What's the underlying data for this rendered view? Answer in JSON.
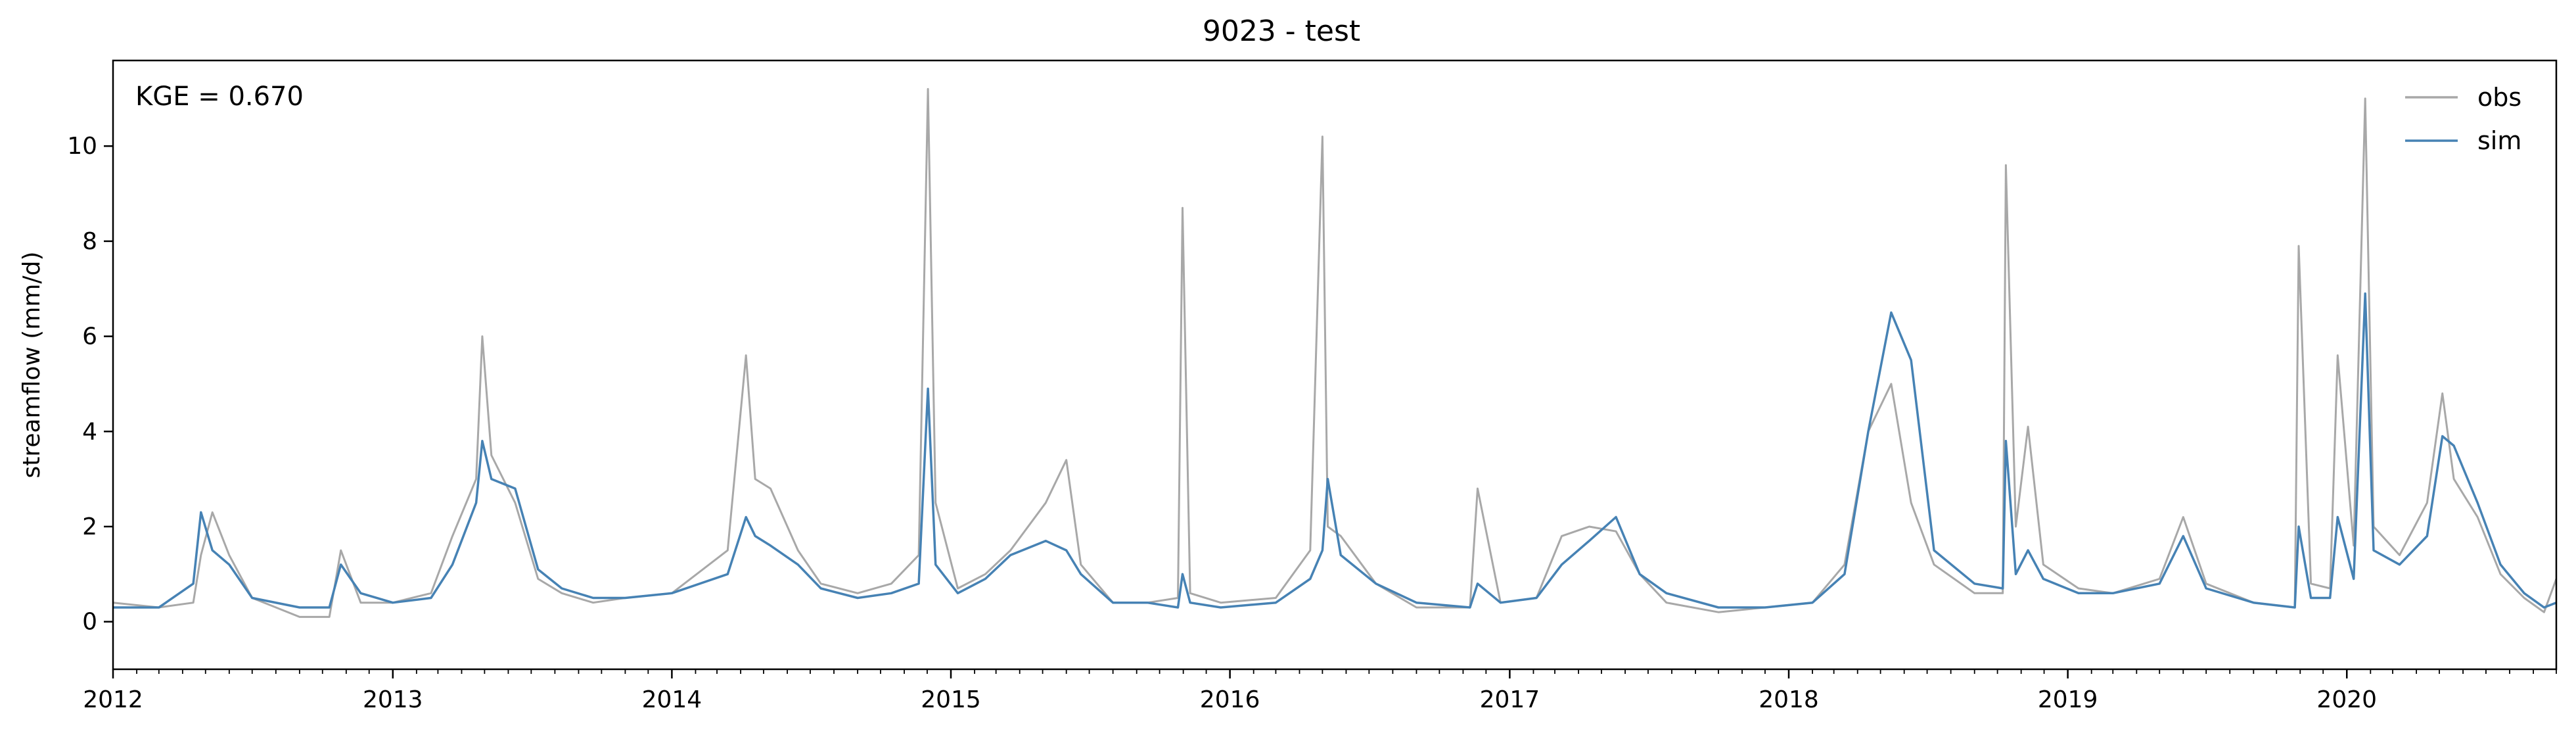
{
  "chart_data": {
    "type": "line",
    "title": "9023 - test",
    "xlabel": "",
    "ylabel": "streamflow (mm/d)",
    "annotation": "KGE = 0.670",
    "xlim": [
      "2012-01-01",
      "2020-10-01"
    ],
    "ylim": [
      -1.0,
      11.8
    ],
    "x_ticks": [
      "2012",
      "2013",
      "2014",
      "2015",
      "2016",
      "2017",
      "2018",
      "2019",
      "2020"
    ],
    "y_ticks": [
      0,
      2,
      4,
      6,
      8,
      10
    ],
    "grid": false,
    "legend_position": "top-right",
    "series": [
      {
        "name": "obs",
        "color": "#a8a8a8",
        "x": [
          "2012-01-01",
          "2012-03-01",
          "2012-04-15",
          "2012-04-25",
          "2012-05-10",
          "2012-06-01",
          "2012-07-01",
          "2012-09-01",
          "2012-10-10",
          "2012-10-25",
          "2012-11-20",
          "2013-01-01",
          "2013-02-20",
          "2013-03-20",
          "2013-04-20",
          "2013-04-28",
          "2013-05-10",
          "2013-06-10",
          "2013-07-10",
          "2013-08-10",
          "2013-09-20",
          "2013-11-01",
          "2014-01-01",
          "2014-03-15",
          "2014-04-08",
          "2014-04-20",
          "2014-05-10",
          "2014-06-15",
          "2014-07-15",
          "2014-09-01",
          "2014-10-15",
          "2014-11-20",
          "2014-12-02",
          "2014-12-12",
          "2015-01-10",
          "2015-02-15",
          "2015-03-20",
          "2015-05-05",
          "2015-06-01",
          "2015-06-20",
          "2015-08-01",
          "2015-09-15",
          "2015-10-25",
          "2015-10-31",
          "2015-11-10",
          "2015-12-20",
          "2016-03-01",
          "2016-04-15",
          "2016-05-01",
          "2016-05-08",
          "2016-05-25",
          "2016-07-10",
          "2016-09-01",
          "2016-11-10",
          "2016-11-20",
          "2016-12-20",
          "2017-02-05",
          "2017-03-10",
          "2017-04-15",
          "2017-05-20",
          "2017-06-20",
          "2017-07-25",
          "2017-10-01",
          "2017-12-01",
          "2018-02-01",
          "2018-03-15",
          "2018-04-15",
          "2018-05-15",
          "2018-06-10",
          "2018-07-10",
          "2018-09-01",
          "2018-10-08",
          "2018-10-12",
          "2018-10-25",
          "2018-11-10",
          "2018-11-30",
          "2019-01-15",
          "2019-03-01",
          "2019-05-01",
          "2019-06-01",
          "2019-07-01",
          "2019-09-01",
          "2019-10-25",
          "2019-10-30",
          "2019-11-15",
          "2019-12-10",
          "2019-12-20",
          "2020-01-10",
          "2020-01-25",
          "2020-02-05",
          "2020-03-10",
          "2020-04-15",
          "2020-05-05",
          "2020-05-20",
          "2020-06-20",
          "2020-07-20",
          "2020-08-20",
          "2020-09-15",
          "2020-10-01"
        ],
        "y": [
          0.4,
          0.3,
          0.4,
          1.4,
          2.3,
          1.4,
          0.5,
          0.1,
          0.1,
          1.5,
          0.4,
          0.4,
          0.6,
          1.8,
          3.0,
          6.0,
          3.5,
          2.5,
          0.9,
          0.6,
          0.4,
          0.5,
          0.6,
          1.5,
          5.6,
          3.0,
          2.8,
          1.5,
          0.8,
          0.6,
          0.8,
          1.4,
          11.2,
          2.5,
          0.7,
          1.0,
          1.5,
          2.5,
          3.4,
          1.2,
          0.4,
          0.4,
          0.5,
          8.7,
          0.6,
          0.4,
          0.5,
          1.5,
          10.2,
          2.0,
          1.8,
          0.8,
          0.3,
          0.3,
          2.8,
          0.4,
          0.5,
          1.8,
          2.0,
          1.9,
          1.0,
          0.4,
          0.2,
          0.3,
          0.4,
          1.2,
          4.0,
          5.0,
          2.5,
          1.2,
          0.6,
          0.6,
          9.6,
          2.0,
          4.1,
          1.2,
          0.7,
          0.6,
          0.9,
          2.2,
          0.8,
          0.4,
          0.3,
          7.9,
          0.8,
          0.7,
          5.6,
          1.6,
          11.0,
          2.0,
          1.4,
          2.5,
          4.8,
          3.0,
          2.2,
          1.0,
          0.5,
          0.2,
          0.9
        ]
      },
      {
        "name": "sim",
        "color": "#4682b4",
        "x": [
          "2012-01-01",
          "2012-03-01",
          "2012-04-15",
          "2012-04-25",
          "2012-05-10",
          "2012-06-01",
          "2012-07-01",
          "2012-09-01",
          "2012-10-10",
          "2012-10-25",
          "2012-11-20",
          "2013-01-01",
          "2013-02-20",
          "2013-03-20",
          "2013-04-20",
          "2013-04-28",
          "2013-05-10",
          "2013-06-10",
          "2013-07-10",
          "2013-08-10",
          "2013-09-20",
          "2013-11-01",
          "2014-01-01",
          "2014-03-15",
          "2014-04-08",
          "2014-04-20",
          "2014-05-10",
          "2014-06-15",
          "2014-07-15",
          "2014-09-01",
          "2014-10-15",
          "2014-11-20",
          "2014-12-02",
          "2014-12-12",
          "2015-01-10",
          "2015-02-15",
          "2015-03-20",
          "2015-05-05",
          "2015-06-01",
          "2015-06-20",
          "2015-08-01",
          "2015-09-15",
          "2015-10-25",
          "2015-10-31",
          "2015-11-10",
          "2015-12-20",
          "2016-03-01",
          "2016-04-15",
          "2016-05-01",
          "2016-05-08",
          "2016-05-25",
          "2016-07-10",
          "2016-09-01",
          "2016-11-10",
          "2016-11-20",
          "2016-12-20",
          "2017-02-05",
          "2017-03-10",
          "2017-04-15",
          "2017-05-20",
          "2017-06-20",
          "2017-07-25",
          "2017-10-01",
          "2017-12-01",
          "2018-02-01",
          "2018-03-15",
          "2018-04-15",
          "2018-05-15",
          "2018-06-10",
          "2018-07-10",
          "2018-09-01",
          "2018-10-08",
          "2018-10-12",
          "2018-10-25",
          "2018-11-10",
          "2018-11-30",
          "2019-01-15",
          "2019-03-01",
          "2019-05-01",
          "2019-06-01",
          "2019-07-01",
          "2019-09-01",
          "2019-10-25",
          "2019-10-30",
          "2019-11-15",
          "2019-12-10",
          "2019-12-20",
          "2020-01-10",
          "2020-01-25",
          "2020-02-05",
          "2020-03-10",
          "2020-04-15",
          "2020-05-05",
          "2020-05-20",
          "2020-06-20",
          "2020-07-20",
          "2020-08-20",
          "2020-09-15",
          "2020-10-01"
        ],
        "y": [
          0.3,
          0.3,
          0.8,
          2.3,
          1.5,
          1.2,
          0.5,
          0.3,
          0.3,
          1.2,
          0.6,
          0.4,
          0.5,
          1.2,
          2.5,
          3.8,
          3.0,
          2.8,
          1.1,
          0.7,
          0.5,
          0.5,
          0.6,
          1.0,
          2.2,
          1.8,
          1.6,
          1.2,
          0.7,
          0.5,
          0.6,
          0.8,
          4.9,
          1.2,
          0.6,
          0.9,
          1.4,
          1.7,
          1.5,
          1.0,
          0.4,
          0.4,
          0.3,
          1.0,
          0.4,
          0.3,
          0.4,
          0.9,
          1.5,
          3.0,
          1.4,
          0.8,
          0.4,
          0.3,
          0.8,
          0.4,
          0.5,
          1.2,
          1.7,
          2.2,
          1.0,
          0.6,
          0.3,
          0.3,
          0.4,
          1.0,
          4.0,
          6.5,
          5.5,
          1.5,
          0.8,
          0.7,
          3.8,
          1.0,
          1.5,
          0.9,
          0.6,
          0.6,
          0.8,
          1.8,
          0.7,
          0.4,
          0.3,
          2.0,
          0.5,
          0.5,
          2.2,
          0.9,
          6.9,
          1.5,
          1.2,
          1.8,
          3.9,
          3.7,
          2.5,
          1.2,
          0.6,
          0.3,
          0.4
        ]
      }
    ]
  }
}
